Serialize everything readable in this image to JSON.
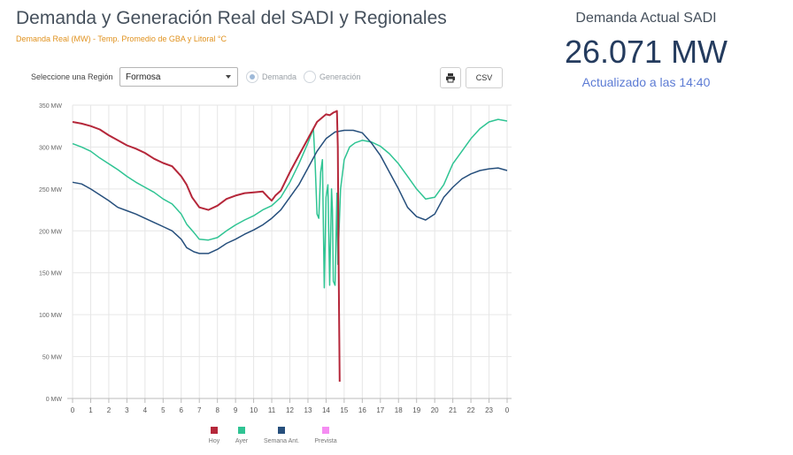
{
  "header": {
    "title": "Demanda y Generación Real del SADI y Regionales",
    "subtitle": "Demanda Real (MW) - Temp. Promedio de GBA y Litoral °C"
  },
  "controls": {
    "region_label": "Seleccione una Región",
    "region_value": "Formosa",
    "radio_demanda": "Demanda",
    "radio_generacion": "Generación",
    "csv_label": "CSV",
    "print_icon": "printer-icon"
  },
  "kpi": {
    "label": "Demanda Actual SADI",
    "value": "26.071 MW",
    "updated": "Actualizado a las 14:40"
  },
  "colors": {
    "hoy": "#b5273a",
    "ayer": "#2fc493",
    "semana": "#264f7c",
    "prevista": "#f58cf2"
  },
  "chart_data": {
    "type": "line",
    "ylim": [
      0,
      350
    ],
    "xlim": [
      0,
      24
    ],
    "y_ticks": [
      0,
      50,
      100,
      150,
      200,
      250,
      300,
      350
    ],
    "y_tick_labels": [
      "0 MW",
      "50 MW",
      "100 MW",
      "150 MW",
      "200 MW",
      "250 MW",
      "300 MW",
      "350 MW"
    ],
    "x_ticks": [
      0,
      1,
      2,
      3,
      4,
      5,
      6,
      7,
      8,
      9,
      10,
      11,
      12,
      13,
      14,
      15,
      16,
      17,
      18,
      19,
      20,
      21,
      22,
      23,
      24
    ],
    "x_tick_labels": [
      "0",
      "1",
      "2",
      "3",
      "4",
      "5",
      "6",
      "7",
      "8",
      "9",
      "10",
      "11",
      "12",
      "13",
      "14",
      "15",
      "16",
      "17",
      "18",
      "19",
      "20",
      "21",
      "22",
      "23",
      "0"
    ],
    "grid": true,
    "legend_position": "bottom",
    "series": [
      {
        "name": "Hoy",
        "color": "#b5273a",
        "points": [
          [
            0,
            330
          ],
          [
            0.5,
            328
          ],
          [
            1,
            325
          ],
          [
            1.5,
            321
          ],
          [
            2,
            314
          ],
          [
            2.5,
            308
          ],
          [
            3,
            302
          ],
          [
            3.5,
            298
          ],
          [
            4,
            293
          ],
          [
            4.5,
            286
          ],
          [
            5,
            281
          ],
          [
            5.5,
            277
          ],
          [
            6,
            265
          ],
          [
            6.3,
            255
          ],
          [
            6.6,
            240
          ],
          [
            7,
            228
          ],
          [
            7.5,
            225
          ],
          [
            8,
            230
          ],
          [
            8.5,
            238
          ],
          [
            9,
            242
          ],
          [
            9.5,
            245
          ],
          [
            10,
            246
          ],
          [
            10.5,
            247
          ],
          [
            10.8,
            240
          ],
          [
            11,
            236
          ],
          [
            11.2,
            242
          ],
          [
            11.5,
            248
          ],
          [
            12,
            270
          ],
          [
            12.5,
            290
          ],
          [
            13,
            310
          ],
          [
            13.5,
            330
          ],
          [
            14,
            339
          ],
          [
            14.2,
            338
          ],
          [
            14.4,
            341
          ],
          [
            14.6,
            343
          ],
          [
            14.65,
            300
          ],
          [
            14.7,
            150
          ],
          [
            14.75,
            20
          ]
        ]
      },
      {
        "name": "Ayer",
        "color": "#2fc493",
        "points": [
          [
            0,
            304
          ],
          [
            0.5,
            300
          ],
          [
            1,
            295
          ],
          [
            1.5,
            287
          ],
          [
            2,
            280
          ],
          [
            2.5,
            273
          ],
          [
            3,
            265
          ],
          [
            3.5,
            258
          ],
          [
            4,
            252
          ],
          [
            4.5,
            246
          ],
          [
            5,
            238
          ],
          [
            5.5,
            232
          ],
          [
            6,
            220
          ],
          [
            6.3,
            208
          ],
          [
            6.7,
            198
          ],
          [
            7,
            190
          ],
          [
            7.5,
            189
          ],
          [
            8,
            192
          ],
          [
            8.5,
            200
          ],
          [
            9,
            207
          ],
          [
            9.5,
            213
          ],
          [
            10,
            218
          ],
          [
            10.5,
            225
          ],
          [
            11,
            230
          ],
          [
            11.5,
            240
          ],
          [
            12,
            258
          ],
          [
            12.5,
            280
          ],
          [
            13,
            305
          ],
          [
            13.3,
            322
          ],
          [
            13.4,
            280
          ],
          [
            13.5,
            220
          ],
          [
            13.6,
            215
          ],
          [
            13.7,
            270
          ],
          [
            13.8,
            285
          ],
          [
            13.9,
            132
          ],
          [
            14,
            240
          ],
          [
            14.1,
            255
          ],
          [
            14.2,
            135
          ],
          [
            14.3,
            250
          ],
          [
            14.35,
            225
          ],
          [
            14.4,
            140
          ],
          [
            14.5,
            135
          ],
          [
            14.6,
            245
          ],
          [
            14.65,
            160
          ],
          [
            14.8,
            250
          ],
          [
            15,
            285
          ],
          [
            15.3,
            300
          ],
          [
            15.6,
            305
          ],
          [
            16,
            308
          ],
          [
            16.5,
            306
          ],
          [
            17,
            301
          ],
          [
            17.5,
            292
          ],
          [
            18,
            280
          ],
          [
            18.5,
            265
          ],
          [
            19,
            250
          ],
          [
            19.5,
            238
          ],
          [
            20,
            240
          ],
          [
            20.5,
            255
          ],
          [
            21,
            280
          ],
          [
            21.5,
            295
          ],
          [
            22,
            310
          ],
          [
            22.5,
            322
          ],
          [
            23,
            330
          ],
          [
            23.5,
            333
          ],
          [
            24,
            331
          ]
        ]
      },
      {
        "name": "Semana Ant.",
        "color": "#264f7c",
        "points": [
          [
            0,
            258
          ],
          [
            0.5,
            256
          ],
          [
            1,
            250
          ],
          [
            1.5,
            243
          ],
          [
            2,
            236
          ],
          [
            2.5,
            228
          ],
          [
            3,
            224
          ],
          [
            3.5,
            220
          ],
          [
            4,
            215
          ],
          [
            4.5,
            210
          ],
          [
            5,
            205
          ],
          [
            5.5,
            200
          ],
          [
            6,
            190
          ],
          [
            6.3,
            180
          ],
          [
            6.7,
            175
          ],
          [
            7,
            173
          ],
          [
            7.5,
            173
          ],
          [
            8,
            178
          ],
          [
            8.5,
            185
          ],
          [
            9,
            190
          ],
          [
            9.5,
            196
          ],
          [
            10,
            201
          ],
          [
            10.5,
            207
          ],
          [
            11,
            215
          ],
          [
            11.5,
            225
          ],
          [
            12,
            240
          ],
          [
            12.5,
            255
          ],
          [
            13,
            275
          ],
          [
            13.5,
            295
          ],
          [
            14,
            310
          ],
          [
            14.5,
            318
          ],
          [
            15,
            320
          ],
          [
            15.5,
            320
          ],
          [
            16,
            317
          ],
          [
            16.5,
            305
          ],
          [
            17,
            290
          ],
          [
            17.5,
            270
          ],
          [
            18,
            250
          ],
          [
            18.5,
            228
          ],
          [
            19,
            217
          ],
          [
            19.5,
            213
          ],
          [
            20,
            220
          ],
          [
            20.5,
            240
          ],
          [
            21,
            252
          ],
          [
            21.5,
            262
          ],
          [
            22,
            268
          ],
          [
            22.5,
            272
          ],
          [
            23,
            274
          ],
          [
            23.5,
            275
          ],
          [
            24,
            272
          ]
        ]
      },
      {
        "name": "Prevista",
        "color": "#f58cf2",
        "points": []
      }
    ]
  }
}
